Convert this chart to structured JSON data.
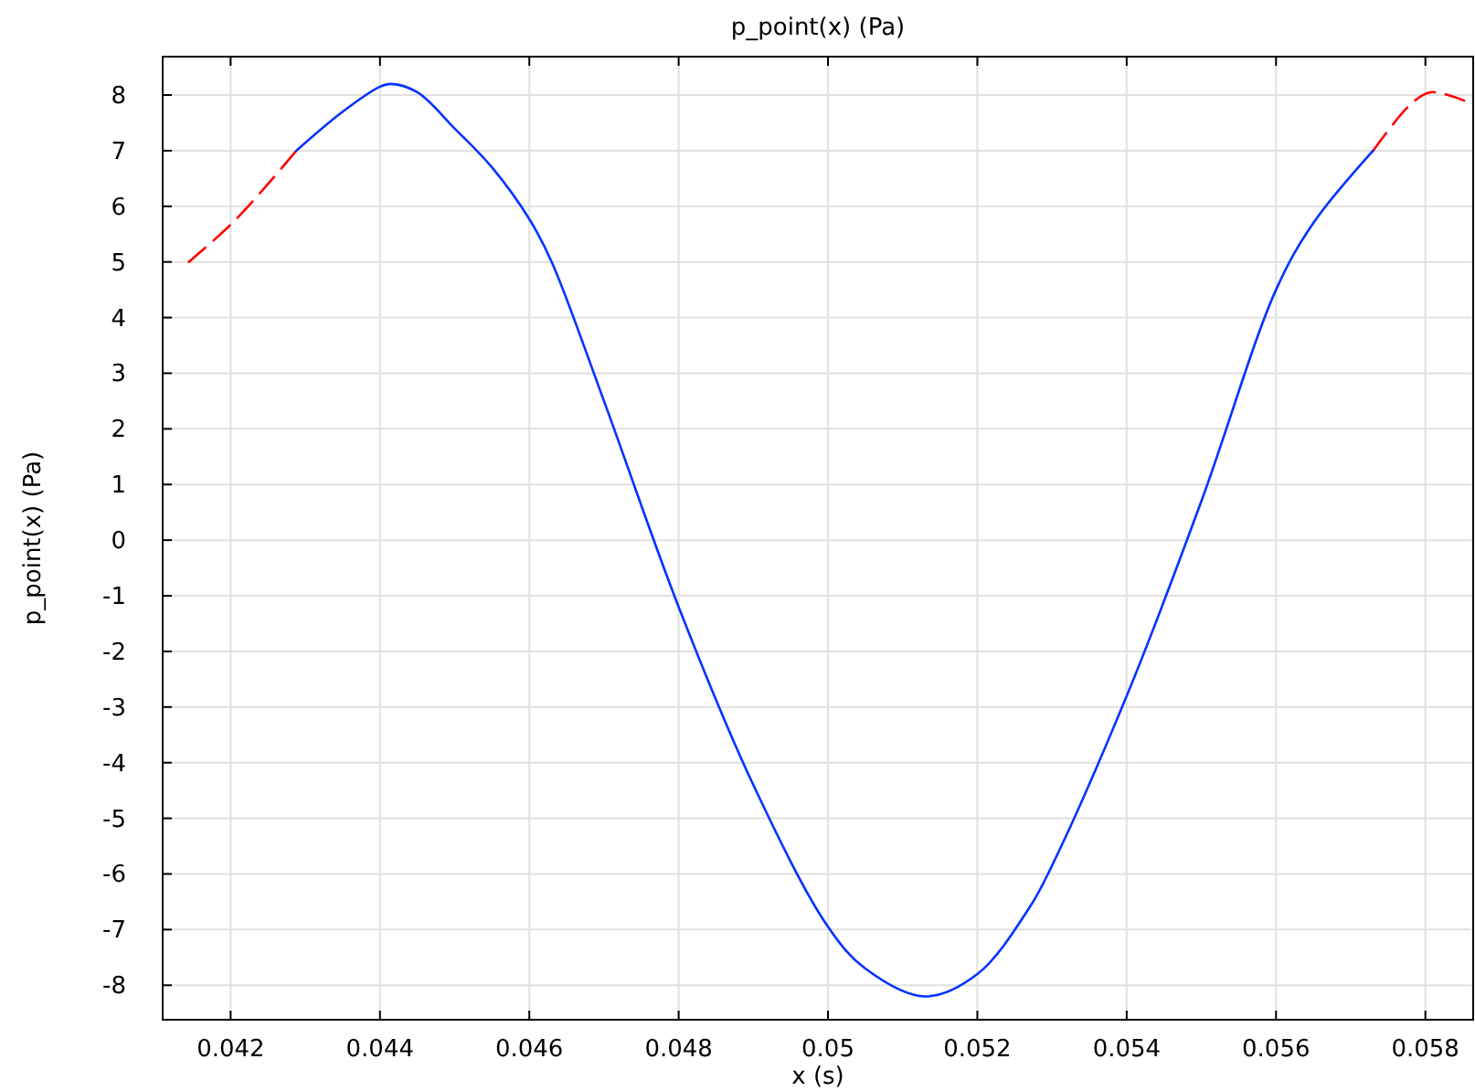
{
  "chart_data": {
    "type": "line",
    "title": "p_point(x) (Pa)",
    "xlabel": "x (s)",
    "ylabel": "p_point(x) (Pa)",
    "xlim": [
      0.04109,
      0.05864
    ],
    "ylim": [
      -8.62,
      8.69
    ],
    "xticks": [
      0.042,
      0.044,
      0.046,
      0.048,
      0.05,
      0.052,
      0.054,
      0.056,
      0.058
    ],
    "yticks": [
      -8,
      -7,
      -6,
      -5,
      -4,
      -3,
      -2,
      -1,
      0,
      1,
      2,
      3,
      4,
      5,
      6,
      7,
      8
    ],
    "grid": true,
    "series": [
      {
        "color": "#ff0000",
        "line_style": "dashed",
        "x": [
          0.04144,
          0.042,
          0.0425,
          0.04288
        ],
        "values": [
          5.0,
          5.67,
          6.4,
          7.0
        ]
      },
      {
        "color": "#ff0000",
        "line_style": "dashed",
        "x": [
          0.0573,
          0.0578,
          0.05807,
          0.05852
        ],
        "values": [
          7.0,
          7.83,
          8.05,
          7.9
        ]
      },
      {
        "color": "#0033ff",
        "line_style": "solid",
        "x": [
          0.04288,
          0.0435,
          0.044,
          0.04415,
          0.0445,
          0.045,
          0.0455,
          0.046,
          0.0463,
          0.047,
          0.048,
          0.049,
          0.05,
          0.0505,
          0.0513,
          0.052,
          0.0527,
          0.053,
          0.054,
          0.055,
          0.056,
          0.0565,
          0.0573
        ],
        "values": [
          7.0,
          7.7,
          8.15,
          8.2,
          8.05,
          7.4,
          6.7,
          5.77,
          5.0,
          2.5,
          -1.2,
          -4.4,
          -6.95,
          -7.7,
          -8.2,
          -7.8,
          -6.6,
          -5.85,
          -2.8,
          0.7,
          4.5,
          5.7,
          7.0
        ]
      }
    ]
  }
}
